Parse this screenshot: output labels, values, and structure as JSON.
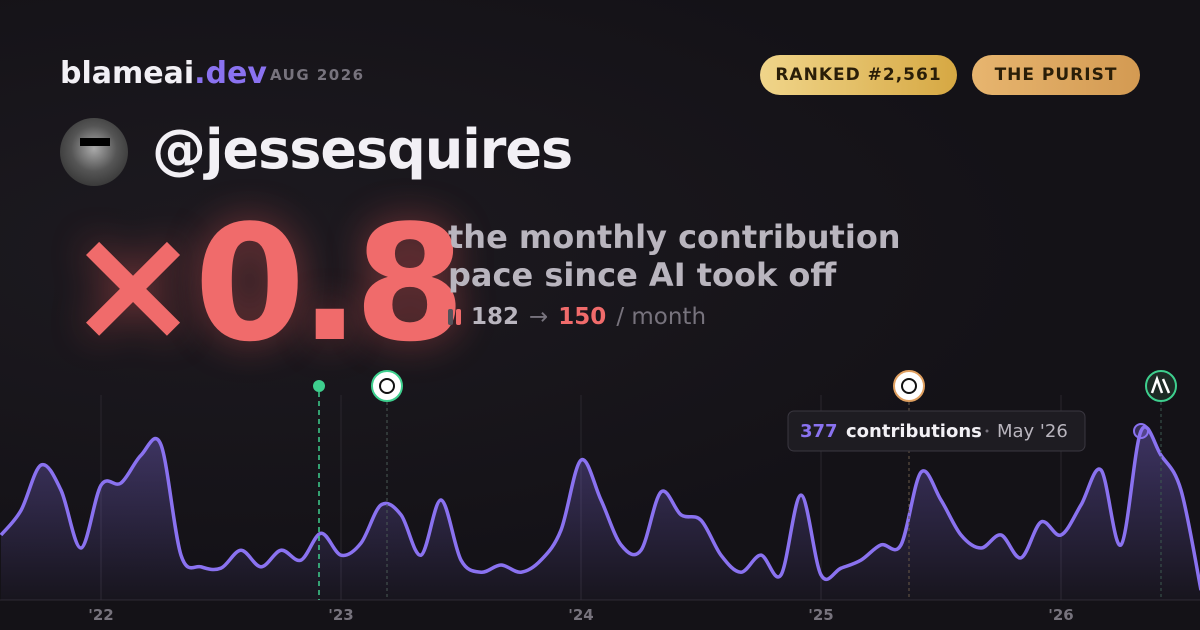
{
  "header": {
    "brand": "blameai",
    "brand_suffix": ".dev",
    "date": "AUG 2026",
    "badges": [
      "RANKED #2,561",
      "THE PURIST"
    ]
  },
  "profile": {
    "handle": "@jessesquires"
  },
  "stat": {
    "multiplier": "×0.8",
    "caption_lines": [
      "the monthly contribution",
      "pace since AI took off"
    ],
    "before": "182",
    "arrow": "→",
    "after": "150",
    "unit": "/ month"
  },
  "chart_data": {
    "type": "area",
    "color": "#8a72f0",
    "categories": [
      null,
      null,
      null,
      null,
      null,
      "'22",
      null,
      null,
      null,
      null,
      null,
      null,
      null,
      null,
      null,
      null,
      null,
      "'23",
      null,
      null,
      null,
      null,
      null,
      null,
      null,
      null,
      null,
      null,
      null,
      "'24",
      null,
      null,
      null,
      null,
      null,
      null,
      null,
      null,
      null,
      null,
      null,
      "'25",
      null,
      null,
      null,
      null,
      null,
      null,
      null,
      null,
      null,
      null,
      null,
      "'26",
      null,
      null,
      null,
      null,
      null,
      null,
      null
    ],
    "values": [
      145,
      200,
      301,
      245,
      116,
      256,
      261,
      323,
      346,
      100,
      74,
      71,
      111,
      74,
      111,
      89,
      149,
      100,
      127,
      212,
      190,
      100,
      223,
      89,
      62,
      78,
      62,
      89,
      156,
      312,
      223,
      123,
      111,
      241,
      190,
      178,
      100,
      62,
      100,
      56,
      234,
      56,
      71,
      89,
      123,
      123,
      285,
      223,
      145,
      116,
      145,
      94,
      174,
      145,
      212,
      290,
      123,
      377,
      323,
      245,
      22
    ],
    "ylim": [
      0,
      400
    ],
    "tooltip": {
      "unit": "contributions",
      "date": "May '26"
    }
  }
}
